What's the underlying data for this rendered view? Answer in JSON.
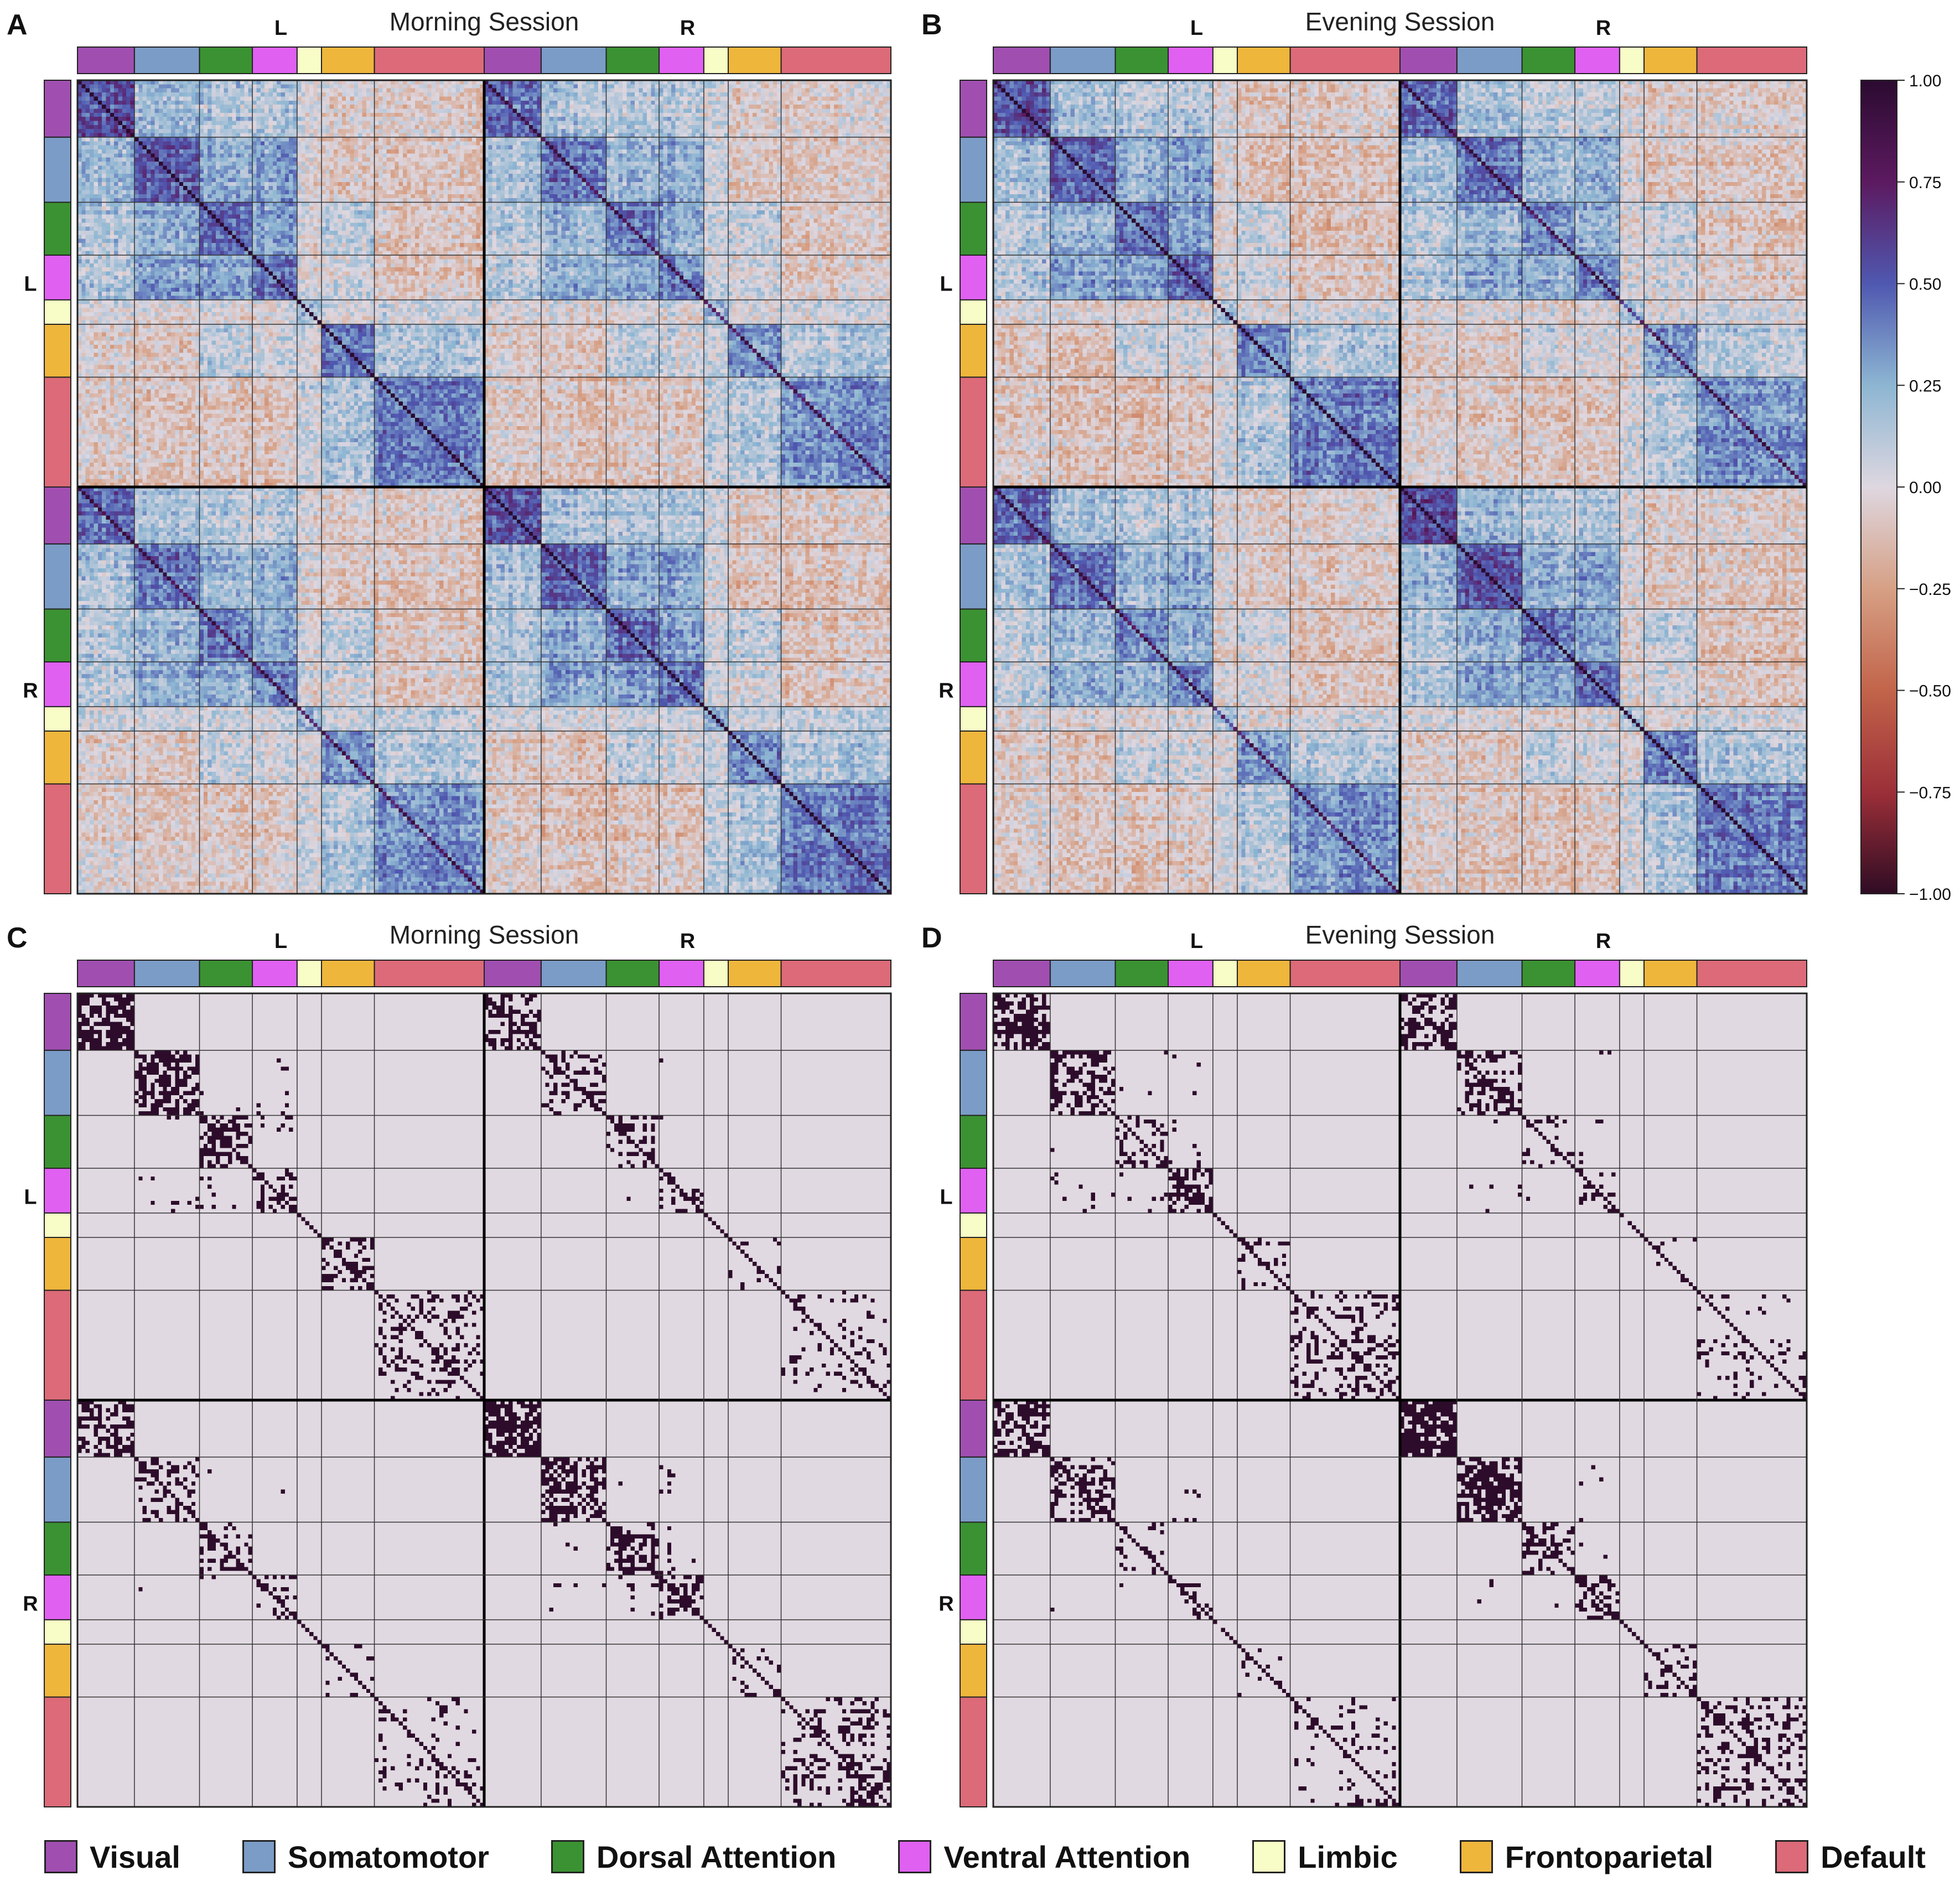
{
  "chart_data": [
    {
      "panel": "A",
      "type": "heatmap",
      "title": "Morning Session",
      "kind": "correlation",
      "col_hemispheres": [
        "L",
        "R"
      ],
      "row_hemispheres": [
        "L",
        "R"
      ],
      "value_range": [
        -1.0,
        1.0
      ]
    },
    {
      "panel": "B",
      "type": "heatmap",
      "title": "Evening Session",
      "kind": "correlation",
      "col_hemispheres": [
        "L",
        "R"
      ],
      "row_hemispheres": [
        "L",
        "R"
      ],
      "value_range": [
        -1.0,
        1.0
      ]
    },
    {
      "panel": "C",
      "type": "heatmap",
      "title": "Morning Session",
      "kind": "binary",
      "col_hemispheres": [
        "L",
        "R"
      ],
      "row_hemispheres": [
        "L",
        "R"
      ],
      "value_range": [
        0,
        1
      ]
    },
    {
      "panel": "D",
      "type": "heatmap",
      "title": "Evening Session",
      "kind": "binary",
      "col_hemispheres": [
        "L",
        "R"
      ],
      "row_hemispheres": [
        "L",
        "R"
      ],
      "value_range": [
        0,
        1
      ]
    }
  ],
  "networks": [
    {
      "name": "Visual",
      "color": "#a04fb0",
      "size": 14
    },
    {
      "name": "Somatomotor",
      "color": "#7b9cc6",
      "size": 16
    },
    {
      "name": "Dorsal Attention",
      "color": "#3b9232",
      "size": 13
    },
    {
      "name": "Ventral Attention",
      "color": "#e060f2",
      "size": 11
    },
    {
      "name": "Limbic",
      "color": "#f8fcc6",
      "size": 6
    },
    {
      "name": "Frontoparietal",
      "color": "#efb63c",
      "size": 13
    },
    {
      "name": "Default",
      "color": "#dc6a78",
      "size": 27
    }
  ],
  "colorbar": {
    "ticks": [
      "1.00",
      "0.75",
      "0.50",
      "0.25",
      "0.00",
      "−0.25",
      "−0.50",
      "−0.75",
      "−1.00"
    ],
    "stops": [
      "#2b0b30",
      "#5c1a60",
      "#4f58b0",
      "#8db6d2",
      "#ded7e0",
      "#d6a085",
      "#c2644a",
      "#9c2f38",
      "#2f0c24"
    ]
  },
  "binary_colors": {
    "on": "#2d0c2b",
    "off": "#e1d9e1"
  }
}
